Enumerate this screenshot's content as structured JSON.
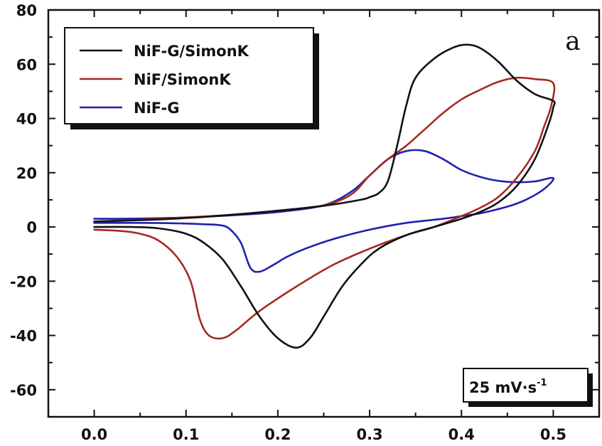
{
  "chart_data": {
    "type": "line",
    "title": "",
    "xlabel": "",
    "ylabel": "",
    "xlim": [
      -0.05,
      0.55
    ],
    "ylim": [
      -70,
      80
    ],
    "x_ticks": [
      0.0,
      0.1,
      0.2,
      0.3,
      0.4,
      0.5
    ],
    "x_tick_labels": [
      "0.0",
      "0.1",
      "0.2",
      "0.3",
      "0.4",
      "0.5"
    ],
    "y_ticks": [
      -60,
      -40,
      -20,
      0,
      20,
      40,
      60,
      80
    ],
    "y_tick_labels": [
      "-60",
      "-40",
      "-20",
      "0",
      "20",
      "40",
      "60",
      "80"
    ],
    "grid": false,
    "legend_position": "top-left",
    "panel_label": "a",
    "scan_rate": {
      "text": "25 mV·s",
      "superscript": "-1"
    },
    "series": [
      {
        "name": "NiF-G/SimonK",
        "color": "#111111",
        "points": [
          [
            0.0,
            2.0
          ],
          [
            0.05,
            2.5
          ],
          [
            0.1,
            3.3
          ],
          [
            0.15,
            4.5
          ],
          [
            0.2,
            6.0
          ],
          [
            0.25,
            7.8
          ],
          [
            0.29,
            10.0
          ],
          [
            0.3,
            11.0
          ],
          [
            0.31,
            12.5
          ],
          [
            0.32,
            17.0
          ],
          [
            0.33,
            30.0
          ],
          [
            0.34,
            45.0
          ],
          [
            0.35,
            55.0
          ],
          [
            0.37,
            62.0
          ],
          [
            0.39,
            66.0
          ],
          [
            0.405,
            67.2
          ],
          [
            0.42,
            66.0
          ],
          [
            0.44,
            61.0
          ],
          [
            0.46,
            54.0
          ],
          [
            0.48,
            49.0
          ],
          [
            0.5,
            46.5
          ],
          [
            0.5,
            44.0
          ],
          [
            0.495,
            38.0
          ],
          [
            0.48,
            25.0
          ],
          [
            0.46,
            15.0
          ],
          [
            0.44,
            9.0
          ],
          [
            0.42,
            5.5
          ],
          [
            0.4,
            3.0
          ],
          [
            0.37,
            0.0
          ],
          [
            0.34,
            -3.0
          ],
          [
            0.31,
            -8.0
          ],
          [
            0.29,
            -14.0
          ],
          [
            0.27,
            -22.0
          ],
          [
            0.25,
            -33.0
          ],
          [
            0.235,
            -41.0
          ],
          [
            0.22,
            -44.5
          ],
          [
            0.2,
            -41.0
          ],
          [
            0.18,
            -33.0
          ],
          [
            0.16,
            -22.0
          ],
          [
            0.14,
            -12.0
          ],
          [
            0.12,
            -6.0
          ],
          [
            0.1,
            -2.5
          ],
          [
            0.07,
            -0.5
          ],
          [
            0.04,
            0.0
          ],
          [
            0.0,
            0.0
          ]
        ]
      },
      {
        "name": "NiF/SimonK",
        "color": "#a52a22",
        "points": [
          [
            0.0,
            2.0
          ],
          [
            0.05,
            2.7
          ],
          [
            0.1,
            3.5
          ],
          [
            0.15,
            4.5
          ],
          [
            0.2,
            6.0
          ],
          [
            0.25,
            8.0
          ],
          [
            0.28,
            12.0
          ],
          [
            0.3,
            19.0
          ],
          [
            0.32,
            25.0
          ],
          [
            0.34,
            30.0
          ],
          [
            0.36,
            36.0
          ],
          [
            0.38,
            42.0
          ],
          [
            0.4,
            47.0
          ],
          [
            0.42,
            50.5
          ],
          [
            0.44,
            53.5
          ],
          [
            0.46,
            55.0
          ],
          [
            0.48,
            54.5
          ],
          [
            0.5,
            53.0
          ],
          [
            0.498,
            45.0
          ],
          [
            0.49,
            37.0
          ],
          [
            0.48,
            28.0
          ],
          [
            0.46,
            18.0
          ],
          [
            0.44,
            11.0
          ],
          [
            0.42,
            7.0
          ],
          [
            0.4,
            4.0
          ],
          [
            0.37,
            0.0
          ],
          [
            0.34,
            -3.0
          ],
          [
            0.3,
            -8.0
          ],
          [
            0.26,
            -14.0
          ],
          [
            0.22,
            -22.0
          ],
          [
            0.18,
            -31.0
          ],
          [
            0.155,
            -38.0
          ],
          [
            0.14,
            -41.0
          ],
          [
            0.125,
            -40.0
          ],
          [
            0.115,
            -34.0
          ],
          [
            0.105,
            -20.0
          ],
          [
            0.09,
            -11.0
          ],
          [
            0.07,
            -5.0
          ],
          [
            0.05,
            -2.5
          ],
          [
            0.03,
            -1.5
          ],
          [
            0.0,
            -1.0
          ]
        ]
      },
      {
        "name": "NiF-G",
        "color": "#2020b0",
        "points": [
          [
            0.0,
            3.0
          ],
          [
            0.05,
            3.1
          ],
          [
            0.1,
            3.5
          ],
          [
            0.15,
            4.3
          ],
          [
            0.2,
            5.5
          ],
          [
            0.25,
            8.0
          ],
          [
            0.28,
            13.0
          ],
          [
            0.3,
            19.0
          ],
          [
            0.32,
            25.0
          ],
          [
            0.34,
            28.0
          ],
          [
            0.36,
            28.0
          ],
          [
            0.38,
            25.0
          ],
          [
            0.4,
            21.0
          ],
          [
            0.42,
            18.5
          ],
          [
            0.44,
            17.0
          ],
          [
            0.46,
            16.5
          ],
          [
            0.48,
            16.8
          ],
          [
            0.5,
            18.0
          ],
          [
            0.49,
            14.0
          ],
          [
            0.47,
            10.0
          ],
          [
            0.45,
            7.5
          ],
          [
            0.42,
            5.0
          ],
          [
            0.4,
            4.0
          ],
          [
            0.38,
            3.0
          ],
          [
            0.34,
            1.5
          ],
          [
            0.3,
            -1.0
          ],
          [
            0.26,
            -4.5
          ],
          [
            0.23,
            -8.0
          ],
          [
            0.21,
            -11.0
          ],
          [
            0.195,
            -14.0
          ],
          [
            0.18,
            -16.5
          ],
          [
            0.17,
            -15.0
          ],
          [
            0.16,
            -6.0
          ],
          [
            0.15,
            -1.5
          ],
          [
            0.14,
            0.5
          ],
          [
            0.12,
            1.0
          ],
          [
            0.08,
            1.4
          ],
          [
            0.04,
            1.5
          ],
          [
            0.0,
            1.5
          ]
        ]
      }
    ]
  }
}
